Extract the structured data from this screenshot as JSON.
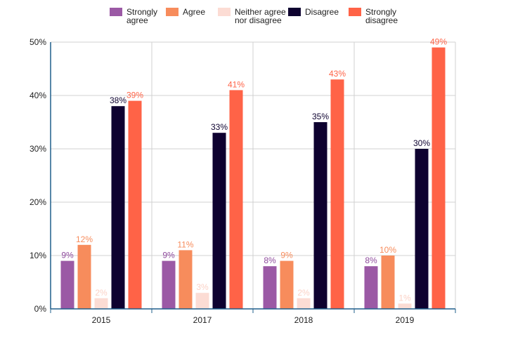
{
  "chart_data": {
    "type": "bar",
    "title": "",
    "xlabel": "",
    "ylabel": "",
    "categories": [
      "2015",
      "2017",
      "2018",
      "2019"
    ],
    "series": [
      {
        "name": "Strongly agree",
        "legend_lines": [
          "Strongly",
          "agree"
        ],
        "color": "#9b59a5",
        "label_color": "#8e4a9c",
        "values": [
          9,
          9,
          8,
          8
        ]
      },
      {
        "name": "Agree",
        "legend_lines": [
          "Agree"
        ],
        "color": "#f78c5c",
        "label_color": "#f78c5c",
        "values": [
          12,
          11,
          9,
          10
        ]
      },
      {
        "name": "Neither agree nor disagree",
        "legend_lines": [
          "Neither agree",
          "nor disagree"
        ],
        "color": "#fcdcd4",
        "label_color": "#fcd2c6",
        "values": [
          2,
          3,
          2,
          1
        ]
      },
      {
        "name": "Disagree",
        "legend_lines": [
          "Disagree"
        ],
        "color": "#0e0230",
        "label_color": "#0e0230",
        "values": [
          38,
          33,
          35,
          30
        ]
      },
      {
        "name": "Strongly disagree",
        "legend_lines": [
          "Strongly",
          "disagree"
        ],
        "color": "#ff6347",
        "label_color": "#ff6347",
        "values": [
          39,
          41,
          43,
          49
        ]
      }
    ],
    "value_suffix": "%",
    "ylim": [
      0,
      50
    ],
    "yticks": [
      0,
      10,
      20,
      30,
      40,
      50
    ],
    "ytick_labels": [
      "0%",
      "10%",
      "20%",
      "30%",
      "40%",
      "50%"
    ],
    "grid": true,
    "legend_position": "top-center"
  }
}
